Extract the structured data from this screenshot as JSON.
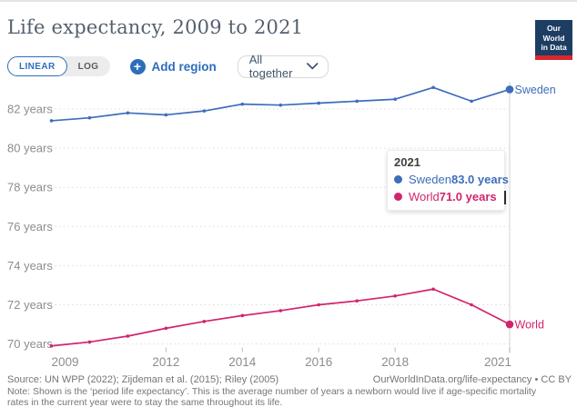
{
  "header": {
    "title": "Life expectancy, 2009 to 2021",
    "logo": {
      "line1": "Our World",
      "line2": "in Data"
    }
  },
  "toolbar": {
    "linear_label": "LINEAR",
    "log_label": "LOG",
    "plus_glyph": "+",
    "add_region_label": "Add region",
    "region_mode_value": "All together"
  },
  "colors": {
    "sweden": "#3d6dbb",
    "world": "#d2246d",
    "accent_blue": "#2d6ebb",
    "logo_navy": "#1d3d63",
    "logo_red": "#d7282f",
    "grid": "#dcdcdc",
    "axis_text": "#8d8d8d",
    "hover_line": "#e3e3e3"
  },
  "chart_data": {
    "type": "line",
    "title": "Life expectancy, 2009 to 2021",
    "x": [
      2009,
      2010,
      2011,
      2012,
      2013,
      2014,
      2015,
      2016,
      2017,
      2018,
      2019,
      2020,
      2021
    ],
    "series": [
      {
        "name": "Sweden",
        "color": "#3d6dbb",
        "values": [
          81.4,
          81.55,
          81.8,
          81.7,
          81.9,
          82.25,
          82.2,
          82.3,
          82.4,
          82.5,
          83.1,
          82.4,
          83.0
        ]
      },
      {
        "name": "World",
        "color": "#d2246d",
        "values": [
          69.9,
          70.1,
          70.4,
          70.8,
          71.15,
          71.45,
          71.7,
          72.0,
          72.2,
          72.45,
          72.8,
          72.0,
          71.0
        ]
      }
    ],
    "xlim": [
      2009,
      2021
    ],
    "ylim": [
      69.8,
      83.3
    ],
    "x_ticks": [
      2009,
      2012,
      2014,
      2016,
      2018,
      2021
    ],
    "y_ticks": [
      70,
      72,
      74,
      76,
      78,
      80,
      82
    ],
    "y_tick_suffix": " years",
    "grid": "horizontal-dotted",
    "legend_position": "end-of-line-labels",
    "hover_year": 2021
  },
  "tooltip": {
    "year": "2021",
    "rows": [
      {
        "name": "Sweden",
        "value": "83.0 years"
      },
      {
        "name": "World",
        "value": "71.0 years"
      }
    ]
  },
  "footer": {
    "source": "Source: UN WPP (2022); Zijdeman et al. (2015); Riley (2005)",
    "link": "OurWorldInData.org/life-expectancy • CC BY",
    "note": "Note: Shown is the ‘period life expectancy’. This is the average number of years a newborn would live if age-specific mortality rates in the current year were to stay the same throughout its life."
  }
}
